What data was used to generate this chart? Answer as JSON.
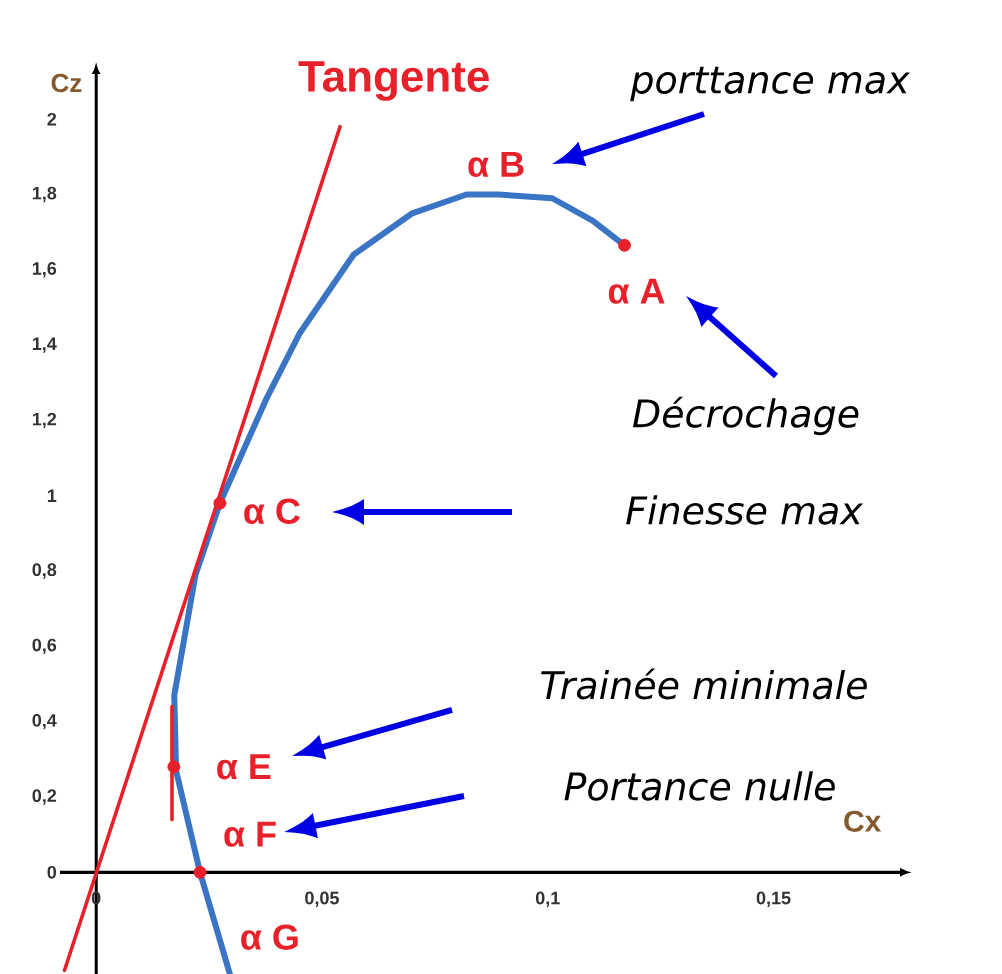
{
  "chart_data": {
    "type": "line",
    "xlabel": "Cx",
    "ylabel": "Cz",
    "xlim": [
      -0.008,
      0.178
    ],
    "ylim": [
      -0.27,
      2.12
    ],
    "xticks": [
      0,
      {
        "value": 0.05,
        "label": "0,05"
      },
      {
        "value": 0.1,
        "label": "0,1"
      },
      {
        "value": 0.15,
        "label": "0,15"
      }
    ],
    "yticks": [
      0,
      {
        "value": 0.2,
        "label": "0,2"
      },
      {
        "value": 0.4,
        "label": "0,4"
      },
      {
        "value": 0.6,
        "label": "0,6"
      },
      {
        "value": 0.8,
        "label": "0,8"
      },
      1,
      {
        "value": 1.2,
        "label": "1,2"
      },
      {
        "value": 1.4,
        "label": "1,4"
      },
      {
        "value": 1.6,
        "label": "1,6"
      },
      {
        "value": 1.8,
        "label": "1,8"
      },
      2
    ],
    "series": [
      {
        "color": "#3a74c4",
        "x": [
          0.0296,
          0.023,
          0.0177,
          0.0173,
          0.022,
          0.0274,
          0.0376,
          0.045,
          0.057,
          0.07,
          0.082,
          0.089,
          0.101,
          0.11,
          0.117
        ],
        "values": [
          -0.27,
          0,
          0.27,
          0.47,
          0.79,
          0.98,
          1.255,
          1.43,
          1.64,
          1.75,
          1.8,
          1.8,
          1.79,
          1.73,
          1.665
        ]
      },
      {
        "name": "Tangente",
        "color": "#e8202a",
        "x": [
          -0.007,
          0.054
        ],
        "values": [
          -0.26,
          1.98
        ]
      },
      {
        "color": "#e8202a",
        "x": [
          0.0168,
          0.0168
        ],
        "values": [
          0.14,
          0.44
        ]
      },
      {
        "type": "scatter",
        "marker": "circle",
        "color": "#e8202a",
        "x": [
          0.117,
          0.0274,
          0.0172,
          0.023
        ],
        "values": [
          1.665,
          0.98,
          0.28,
          0
        ]
      }
    ],
    "annotations": [
      {
        "text": "α A",
        "x": 0.117,
        "y": 1.665
      },
      {
        "text": "α B",
        "x": 0.089,
        "y": 1.8
      },
      {
        "text": "α C",
        "x": 0.0274,
        "y": 0.98
      },
      {
        "text": "α E",
        "x": 0.0172,
        "y": 0.28
      },
      {
        "text": "α F",
        "x": 0.023,
        "y": 0
      },
      {
        "text": "α G",
        "x": 0.0296,
        "y": -0.22
      },
      "porttance max",
      "Décrochage",
      "Finesse max",
      "Trainée minimale",
      "Portance nulle"
    ]
  }
}
